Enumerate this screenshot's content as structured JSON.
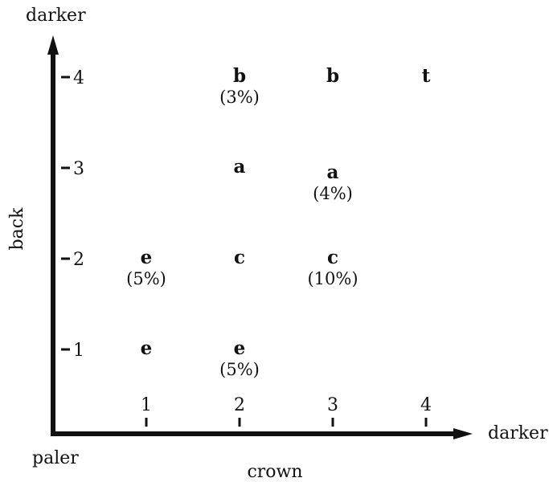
{
  "chart_data": {
    "type": "scatter",
    "x_axis": {
      "name": "crown",
      "low_label": "paler",
      "high_label": "darker",
      "ticks": [
        "1",
        "2",
        "3",
        "4"
      ]
    },
    "y_axis": {
      "name": "back",
      "high_label": "darker",
      "ticks": [
        "1",
        "2",
        "3",
        "4"
      ]
    },
    "cells": [
      {
        "x": 1,
        "y": 1,
        "letter": "e",
        "pct": ""
      },
      {
        "x": 1,
        "y": 2,
        "letter": "e",
        "pct": "(5%)"
      },
      {
        "x": 2,
        "y": 1,
        "letter": "e",
        "pct": "(5%)"
      },
      {
        "x": 2,
        "y": 2,
        "letter": "c",
        "pct": ""
      },
      {
        "x": 2,
        "y": 3,
        "letter": "a",
        "pct": ""
      },
      {
        "x": 2,
        "y": 4,
        "letter": "b",
        "pct": "(3%)"
      },
      {
        "x": 3,
        "y": 2,
        "letter": "c",
        "pct": "(10%)"
      },
      {
        "x": 3,
        "y": 3,
        "letter": "a",
        "pct": "(4%)"
      },
      {
        "x": 3,
        "y": 4,
        "letter": "b",
        "pct": ""
      },
      {
        "x": 4,
        "y": 4,
        "letter": "t",
        "pct": ""
      }
    ]
  },
  "colors": {
    "ink": "#111111",
    "background": "#ffffff"
  }
}
